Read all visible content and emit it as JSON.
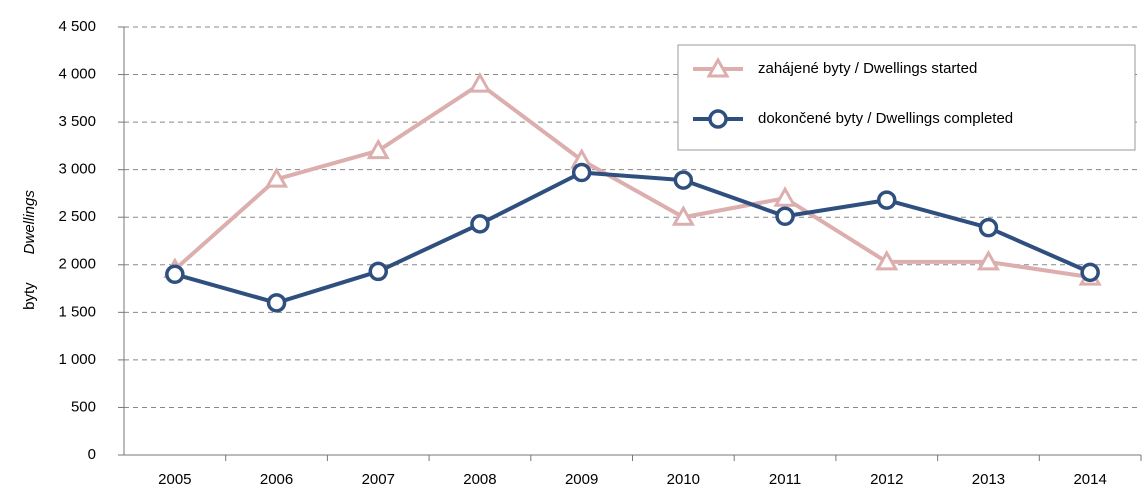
{
  "chart_data": {
    "type": "line",
    "ylabel": "byty",
    "ylabel_en": "Dwellings",
    "categories": [
      "2005",
      "2006",
      "2007",
      "2008",
      "2009",
      "2010",
      "2011",
      "2012",
      "2013",
      "2014"
    ],
    "series": [
      {
        "name": "zahájené byty / Dwellings started",
        "color": "#dcaeae",
        "marker": "triangle",
        "values": [
          1950,
          2900,
          3200,
          3900,
          3100,
          2500,
          2700,
          2030,
          2030,
          1870
        ]
      },
      {
        "name": "dokončené byty / Dwellings completed",
        "color": "#2f4f7f",
        "marker": "circle",
        "values": [
          1900,
          1600,
          1930,
          2430,
          2970,
          2890,
          2510,
          2680,
          2390,
          1920
        ]
      }
    ],
    "ylim": [
      0,
      4500
    ],
    "yticks": [
      0,
      500,
      {
        "value": 1000,
        "label": "1 000"
      },
      {
        "value": 1500,
        "label": "1 500"
      },
      {
        "value": 2000,
        "label": "2 000"
      },
      {
        "value": 2500,
        "label": "2 500"
      },
      {
        "value": 3000,
        "label": "3 000"
      },
      {
        "value": 3500,
        "label": "3 500"
      },
      {
        "value": 4000,
        "label": "4 000"
      },
      {
        "value": 4500,
        "label": "4 500"
      }
    ],
    "grid": true,
    "legend": "upper right"
  }
}
